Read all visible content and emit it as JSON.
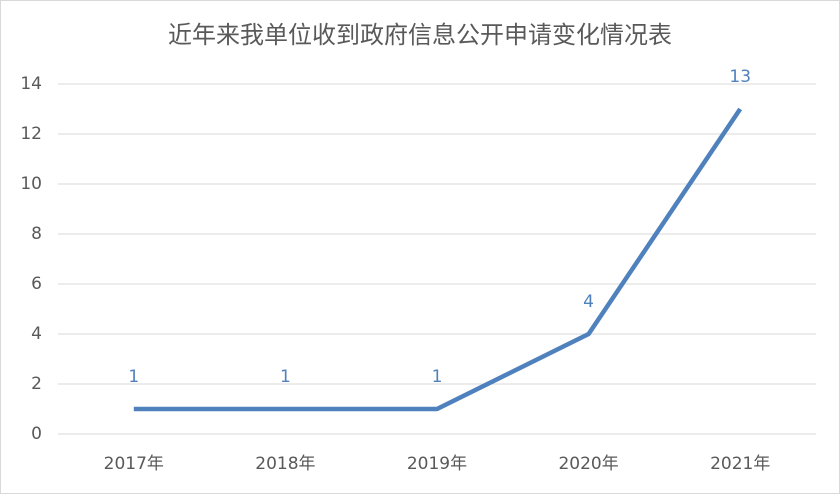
{
  "chart_data": {
    "type": "line",
    "title": "近年来我单位收到政府信息公开申请变化情况表",
    "categories": [
      "2017年",
      "2018年",
      "2019年",
      "2020年",
      "2021年"
    ],
    "values": [
      1,
      1,
      1,
      4,
      13
    ],
    "color": "#4f81bd",
    "ylim": [
      0,
      14
    ],
    "yticks": [
      0,
      2,
      4,
      6,
      8,
      10,
      12,
      14
    ],
    "grid": true,
    "data_labels": true
  }
}
